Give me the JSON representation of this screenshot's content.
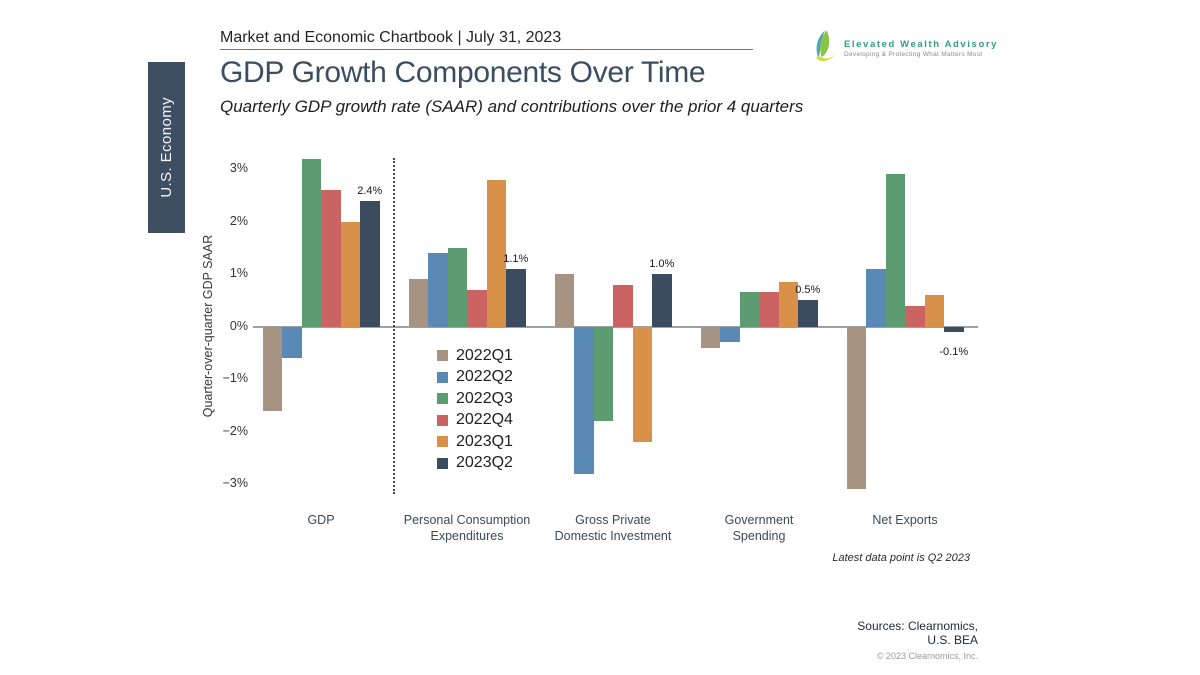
{
  "sidebar": {
    "label": "U.S. Economy"
  },
  "header": {
    "chartbook_title": "Market and Economic Chartbook | July 31, 2023"
  },
  "logo": {
    "name": "Elevated Wealth Advisory",
    "tagline": "Developing & Protecting What Matters Most"
  },
  "page_title": "GDP Growth Components Over Time",
  "page_subtitle": "Quarterly GDP growth rate (SAAR) and contributions over the prior 4 quarters",
  "chart_data": {
    "type": "bar",
    "title": "GDP Growth Components Over Time",
    "ylabel": "Quarter-over-quarter GDP SAAR",
    "ylim": [
      -3.5,
      3.5
    ],
    "grid": false,
    "legend_position": "inside-plot below-axis between PCE and GPDI",
    "y_tick_labels": [
      "3%",
      "2%",
      "1%",
      "0%",
      "−1%",
      "−2%",
      "−3%"
    ],
    "y_tick_values": [
      3,
      2,
      1,
      0,
      -1,
      -2,
      -3
    ],
    "categories": [
      "GDP",
      "Personal Consumption Expenditures",
      "Gross Private Domestic Investment",
      "Government Spending",
      "Net Exports"
    ],
    "category_label_lines": [
      [
        "GDP"
      ],
      [
        "Personal Consumption",
        "Expenditures"
      ],
      [
        "Gross Private",
        "Domestic Investment"
      ],
      [
        "Government",
        "Spending"
      ],
      [
        "Net Exports"
      ]
    ],
    "series": [
      {
        "name": "2022Q1",
        "color": "#a79382",
        "values": [
          -1.6,
          0.9,
          1.0,
          -0.4,
          -3.1
        ]
      },
      {
        "name": "2022Q2",
        "color": "#5989b4",
        "values": [
          -0.6,
          1.4,
          -2.8,
          -0.3,
          1.1
        ]
      },
      {
        "name": "2022Q3",
        "color": "#5d9c70",
        "values": [
          3.2,
          1.5,
          -1.8,
          0.65,
          2.9
        ]
      },
      {
        "name": "2022Q4",
        "color": "#cc6363",
        "values": [
          2.6,
          0.7,
          0.8,
          0.65,
          0.4
        ]
      },
      {
        "name": "2023Q1",
        "color": "#d99049",
        "values": [
          2.0,
          2.8,
          -2.2,
          0.85,
          0.6
        ]
      },
      {
        "name": "2023Q2",
        "color": "#3a4c5d",
        "values": [
          2.4,
          1.1,
          1.0,
          0.5,
          -0.1
        ]
      }
    ],
    "value_labels": [
      {
        "category": "GDP",
        "series": "2023Q2",
        "text": "2.4%"
      },
      {
        "category": "Personal Consumption Expenditures",
        "series": "2023Q2",
        "text": "1.1%"
      },
      {
        "category": "Gross Private Domestic Investment",
        "series": "2023Q2",
        "text": "1.0%"
      },
      {
        "category": "Government Spending",
        "series": "2023Q2",
        "text": "0.5%"
      },
      {
        "category": "Net Exports",
        "series": "2023Q2",
        "text": "-0.1%"
      }
    ],
    "separator": {
      "type": "dotted-vertical-line",
      "after_category": "GDP"
    }
  },
  "footnote": "Latest data point is Q2 2023",
  "sources": {
    "line1": "Sources: Clearnomics,",
    "line2": "U.S. BEA",
    "copyright": "© 2023 Clearnomics, Inc."
  },
  "colors": {
    "sidebar_bg": "#3e4f63",
    "title_text": "#3b4d61",
    "logo_green": "#2f9e85",
    "zero_line": "#9ba1a7",
    "logo_mark_teal": "#4aa9b5",
    "logo_mark_green": "#8bc34a",
    "logo_mark_yellow": "#cddc39"
  }
}
